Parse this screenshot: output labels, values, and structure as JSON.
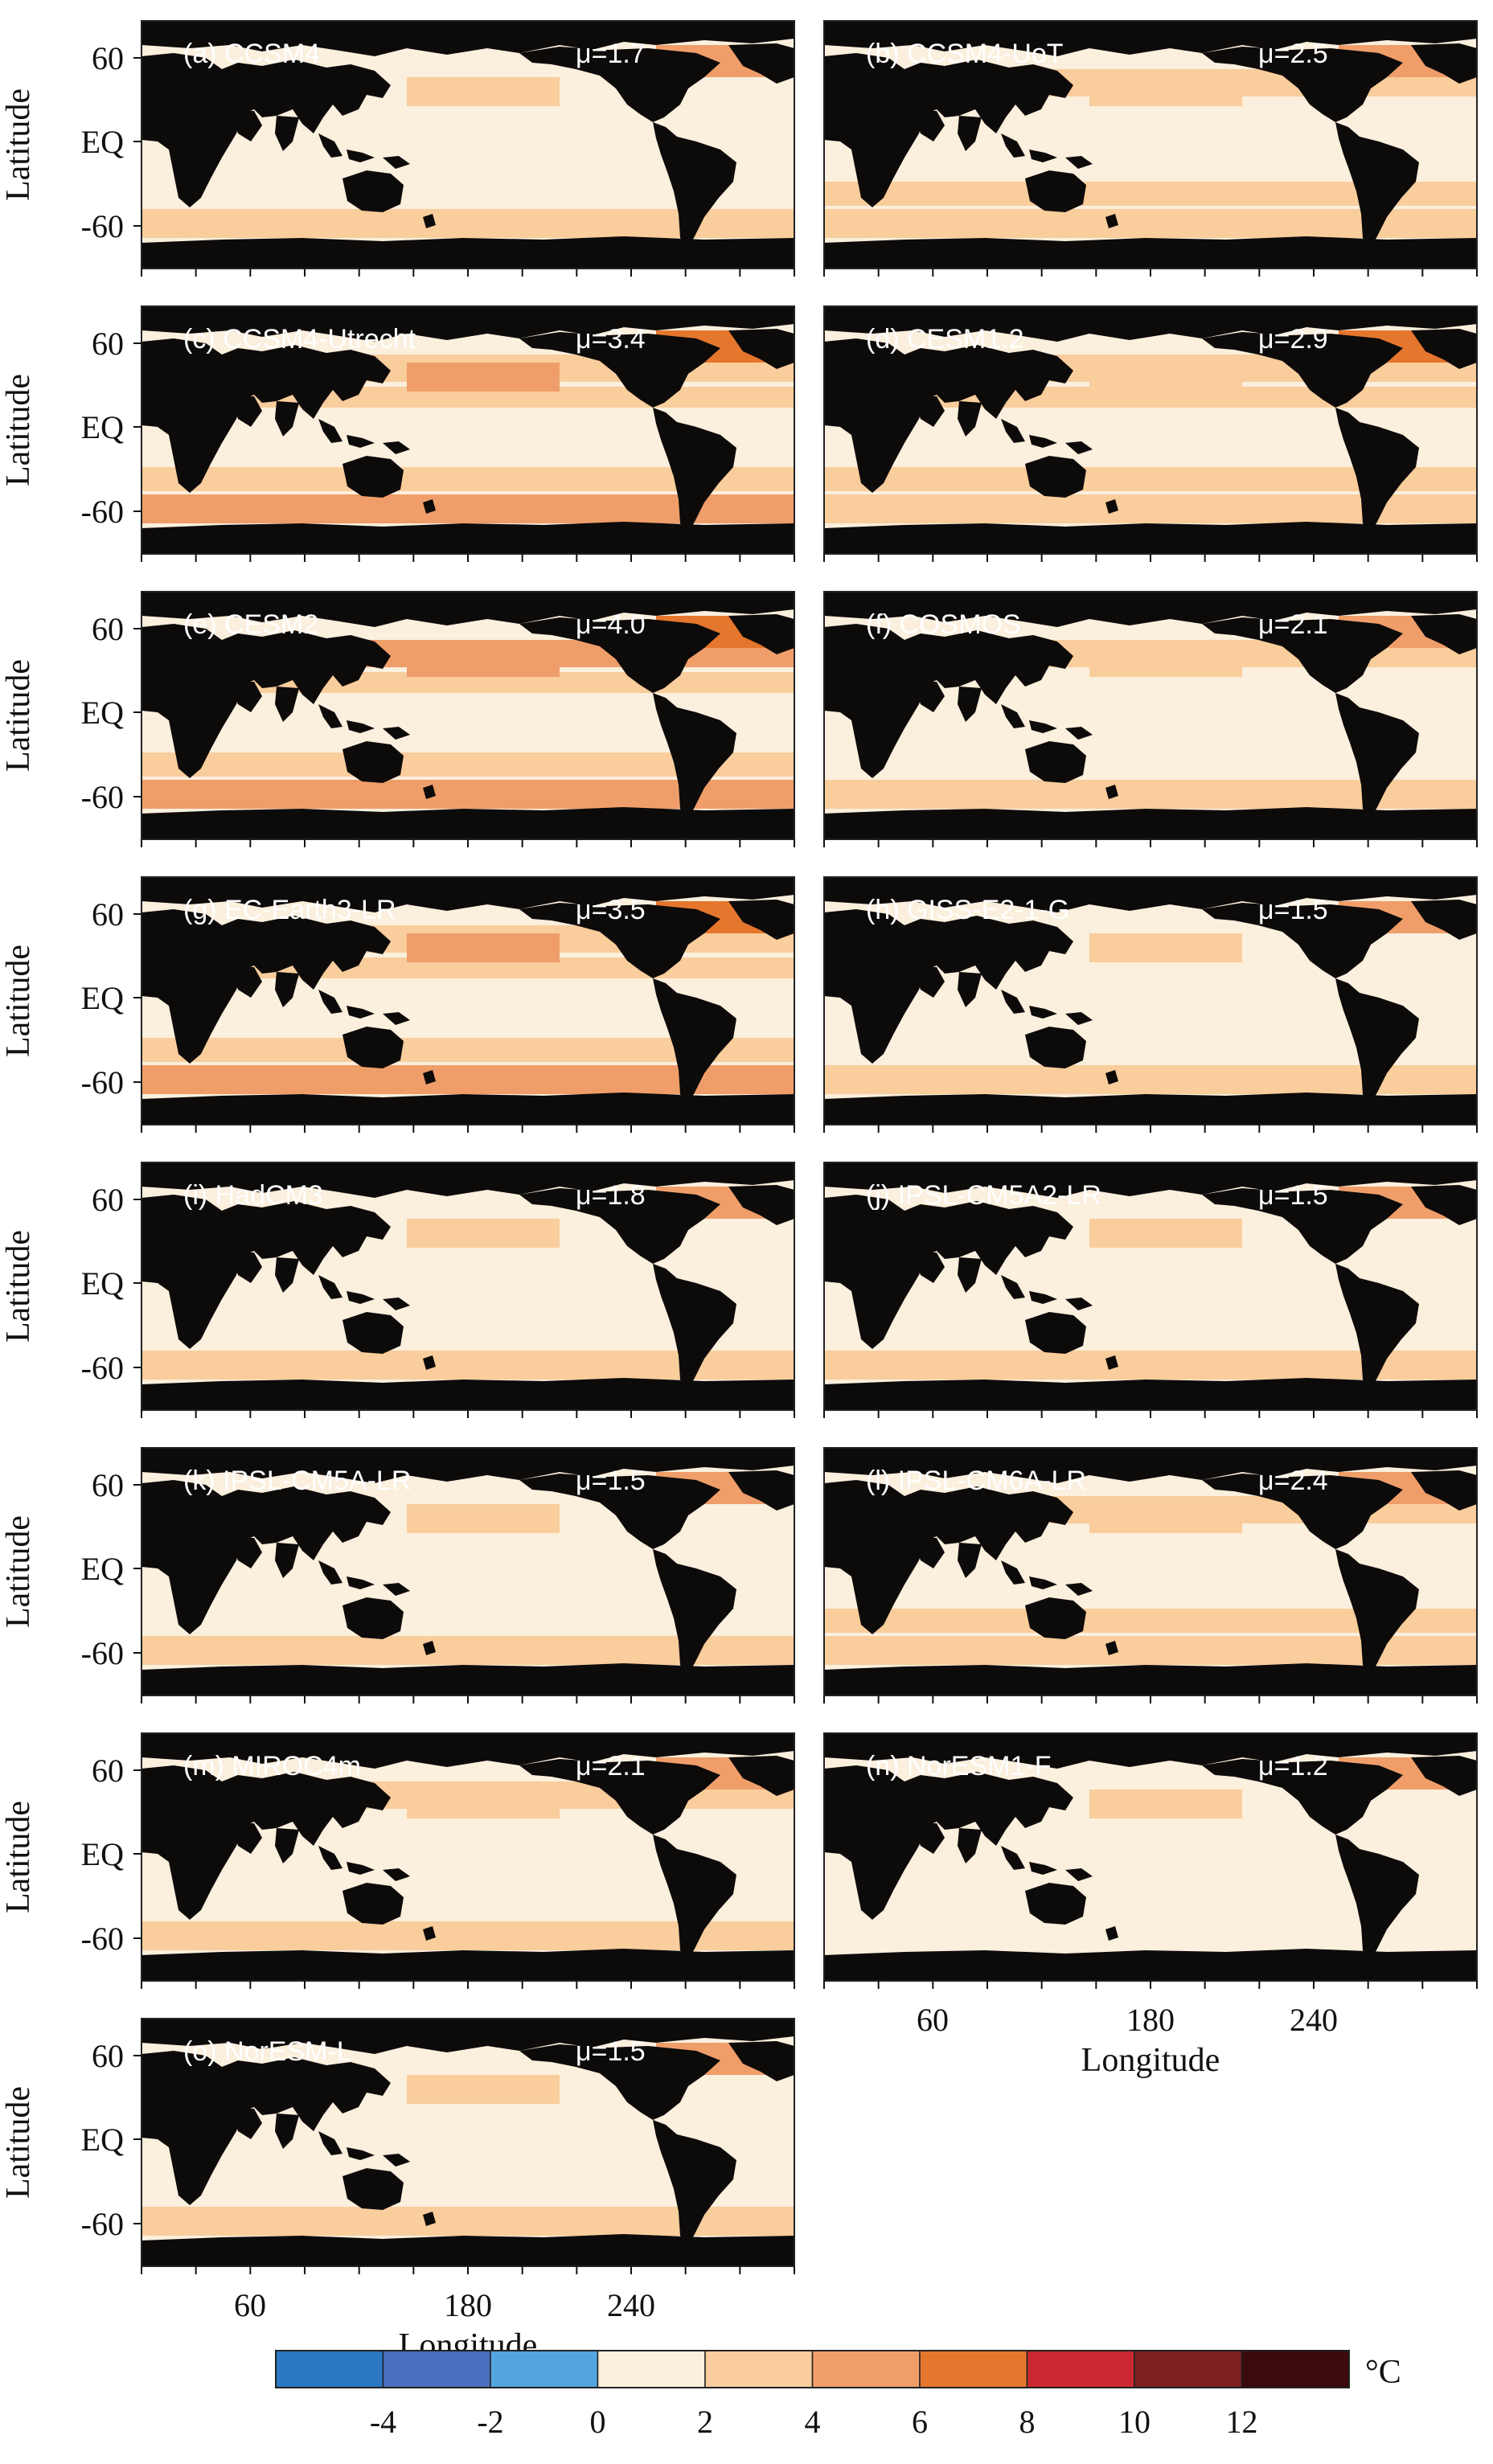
{
  "chart_data": {
    "type": "heatmap",
    "description_units": "°C",
    "ylabel": "Latitude",
    "xlabel": "Longitude",
    "ytick_labels": [
      "60",
      "EQ",
      "-60"
    ],
    "xtick_labels": [
      "60",
      "180",
      "240"
    ],
    "colorbar": {
      "unit": "°C",
      "tick_labels": [
        "-4",
        "-2",
        "0",
        "2",
        "4",
        "6",
        "8",
        "10",
        "12"
      ],
      "bins": [
        {
          "from": -6,
          "to": -4,
          "color": "#2a78c2"
        },
        {
          "from": -4,
          "to": -2,
          "color": "#4a6fc0"
        },
        {
          "from": -2,
          "to": 0,
          "color": "#55a4e0"
        },
        {
          "from": 0,
          "to": 2,
          "color": "#fbefdd"
        },
        {
          "from": 2,
          "to": 4,
          "color": "#f9cd9c"
        },
        {
          "from": 4,
          "to": 6,
          "color": "#ef9e6a"
        },
        {
          "from": 6,
          "to": 8,
          "color": "#e5762d"
        },
        {
          "from": 8,
          "to": 10,
          "color": "#c92832"
        },
        {
          "from": 10,
          "to": 12,
          "color": "#7e1f22"
        },
        {
          "from": 12,
          "to": 14,
          "color": "#3a0a0c"
        }
      ]
    },
    "panels": [
      {
        "label": "(a) CCSM4",
        "mu": "μ=1.7",
        "mean": 1.7
      },
      {
        "label": "(b) CCSM4-UoT",
        "mu": "μ=2.5",
        "mean": 2.5
      },
      {
        "label": "(c) CCSM4-Utrecht",
        "mu": "μ=3.4",
        "mean": 3.4
      },
      {
        "label": "(d) CESM1.2",
        "mu": "μ=2.9",
        "mean": 2.9
      },
      {
        "label": "(e) CESM2",
        "mu": "μ=4.0",
        "mean": 4.0
      },
      {
        "label": "(f) COSMOS",
        "mu": "μ=2.1",
        "mean": 2.1
      },
      {
        "label": "(g) EC-Earth3-LR",
        "mu": "μ=3.5",
        "mean": 3.5
      },
      {
        "label": "(h) GISS-E2-1-G",
        "mu": "μ=1.5",
        "mean": 1.5
      },
      {
        "label": "(i) HadCM3",
        "mu": "μ=1.8",
        "mean": 1.8
      },
      {
        "label": "(j) IPSL-CM5A2-LR",
        "mu": "μ=1.5",
        "mean": 1.5
      },
      {
        "label": "(k) IPSL-CM5A-LR",
        "mu": "μ=1.5",
        "mean": 1.5
      },
      {
        "label": "(l) IPSL-CM6A-LR",
        "mu": "μ=2.4",
        "mean": 2.4
      },
      {
        "label": "(m) MIROC4m",
        "mu": "μ=2.1",
        "mean": 2.1
      },
      {
        "label": "(n) NorESM1-F",
        "mu": "μ=1.2",
        "mean": 1.2
      },
      {
        "label": "(o) NorESM-L",
        "mu": "μ=1.5",
        "mean": 1.5
      }
    ]
  }
}
